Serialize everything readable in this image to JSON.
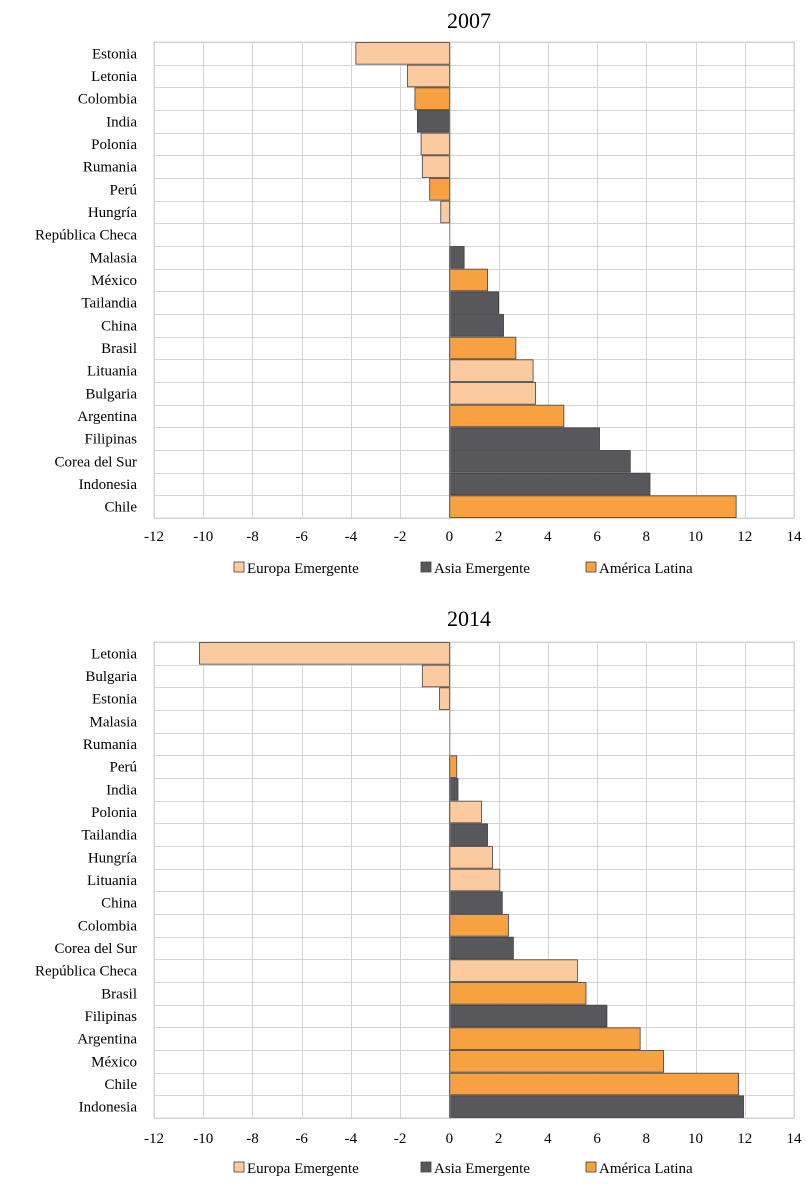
{
  "colors": {
    "europa": "#FBCB9F",
    "asia": "#58585C",
    "latina": "#F7A140",
    "grid": "#D4D4D4",
    "axis": "#888888"
  },
  "legend": [
    {
      "label": "Europa Emergente",
      "group": "europa"
    },
    {
      "label": "Asia Emergente",
      "group": "asia"
    },
    {
      "label": "América Latina",
      "group": "latina"
    }
  ],
  "chart_data": [
    {
      "type": "bar",
      "orientation": "horizontal",
      "title": "2007",
      "xlim": [
        -12,
        14
      ],
      "xticks": [
        -12,
        -10,
        -8,
        -6,
        -4,
        -2,
        0,
        2,
        4,
        6,
        8,
        10,
        12,
        14
      ],
      "grid": true,
      "legend_position": "bottom",
      "categories": [
        "Estonia",
        "Letonia",
        "Colombia",
        "India",
        "Polonia",
        "Rumania",
        "Perú",
        "Hungría",
        "República Checa",
        "Malasia",
        "México",
        "Tailandia",
        "China",
        "Brasil",
        "Lituania",
        "Bulgaria",
        "Argentina",
        "Filipinas",
        "Corea del Sur",
        "Indonesia",
        "Chile"
      ],
      "values": [
        -3.8,
        -1.7,
        -1.4,
        -1.3,
        -1.15,
        -1.1,
        -0.8,
        -0.35,
        0.0,
        0.6,
        1.55,
        2.0,
        2.2,
        2.7,
        3.4,
        3.5,
        4.65,
        6.1,
        7.35,
        8.15,
        11.65
      ],
      "groups": [
        "europa",
        "europa",
        "latina",
        "asia",
        "europa",
        "europa",
        "latina",
        "europa",
        "europa",
        "asia",
        "latina",
        "asia",
        "asia",
        "latina",
        "europa",
        "europa",
        "latina",
        "asia",
        "asia",
        "asia",
        "latina"
      ]
    },
    {
      "type": "bar",
      "orientation": "horizontal",
      "title": "2014",
      "xlim": [
        -12,
        14
      ],
      "xticks": [
        -12,
        -10,
        -8,
        -6,
        -4,
        -2,
        0,
        2,
        4,
        6,
        8,
        10,
        12,
        14
      ],
      "grid": true,
      "legend_position": "bottom",
      "categories": [
        "Letonia",
        "Bulgaria",
        "Estonia",
        "Malasia",
        "Rumania",
        "Perú",
        "India",
        "Polonia",
        "Tailandia",
        "Hungría",
        "Lituania",
        "China",
        "Colombia",
        "Corea del Sur",
        "República Checa",
        "Brasil",
        "Filipinas",
        "Argentina",
        "México",
        "Chile",
        "Indonesia"
      ],
      "values": [
        -10.15,
        -1.1,
        -0.4,
        0.0,
        0.0,
        0.3,
        0.35,
        1.3,
        1.55,
        1.75,
        2.05,
        2.15,
        2.4,
        2.6,
        5.2,
        5.55,
        6.4,
        7.75,
        8.7,
        11.75,
        11.95
      ],
      "groups": [
        "europa",
        "europa",
        "europa",
        "asia",
        "europa",
        "latina",
        "asia",
        "europa",
        "asia",
        "europa",
        "europa",
        "asia",
        "latina",
        "asia",
        "europa",
        "latina",
        "asia",
        "latina",
        "latina",
        "latina",
        "asia"
      ]
    }
  ]
}
